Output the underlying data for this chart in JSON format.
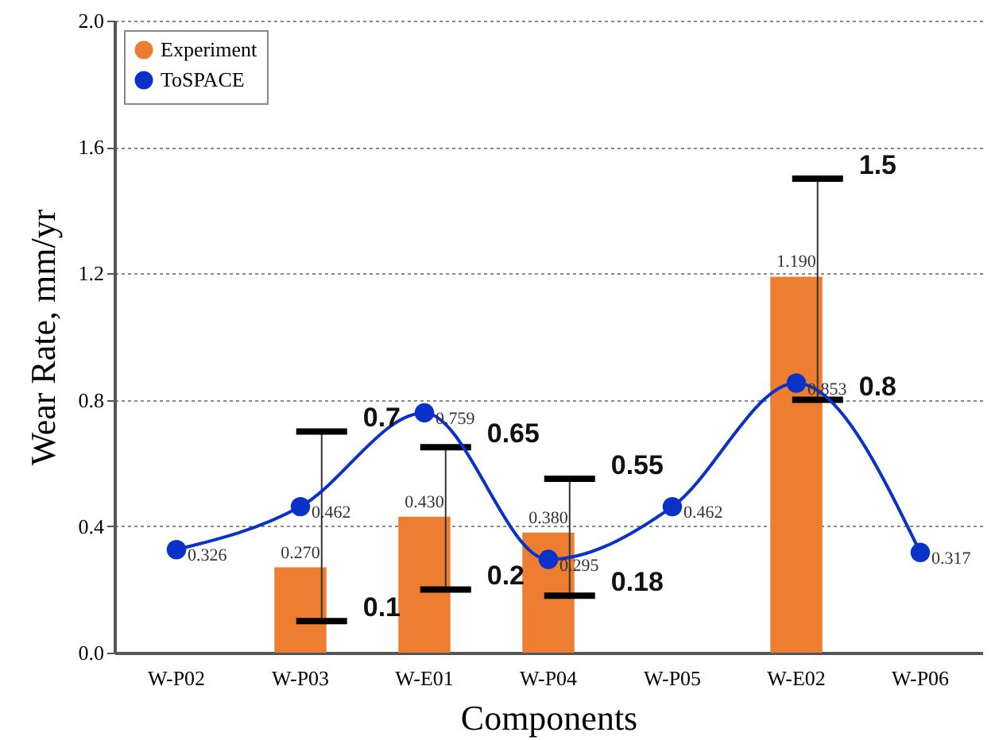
{
  "chart_data": {
    "type": "bar",
    "xlabel": "Components",
    "ylabel": "Wear Rate, mm/yr",
    "categories": [
      "W-P02",
      "W-P03",
      "W-E01",
      "W-P04",
      "W-P05",
      "W-E02",
      "W-P06"
    ],
    "series": [
      {
        "name": "Experiment",
        "color": "#ed7d31",
        "values": [
          null,
          0.27,
          0.43,
          0.38,
          null,
          1.19,
          null
        ],
        "value_labels": [
          null,
          "0.270",
          "0.430",
          "0.380",
          null,
          "1.190",
          null
        ],
        "errors": [
          null,
          [
            0.1,
            0.7
          ],
          [
            0.2,
            0.65
          ],
          [
            0.18,
            0.55
          ],
          null,
          [
            0.8,
            1.5
          ],
          null
        ]
      },
      {
        "name": "ToSPACE",
        "type": "line",
        "color": "#0a32c8",
        "marker": "circle",
        "values": [
          0.326,
          0.462,
          0.759,
          0.295,
          0.462,
          0.853,
          0.317
        ],
        "value_labels": [
          "0.326",
          "0.462",
          "0.759",
          "0.295",
          "0.462",
          "0.853",
          "0.317"
        ]
      }
    ],
    "ylim": [
      0,
      2.0
    ],
    "yticks": [
      {
        "value": 0,
        "label": "0.0"
      },
      {
        "value": 0.4,
        "label": "0.4"
      },
      {
        "value": 0.8,
        "label": "0.8"
      },
      {
        "value": 1.2,
        "label": "1.2"
      },
      {
        "value": 1.6,
        "label": "1.6"
      },
      {
        "value": 2.0,
        "label": "2.0"
      }
    ],
    "grid": "y",
    "legend": "top left",
    "annotations": [
      {
        "text": "0.7",
        "x": "W-P03",
        "y": 0.7
      },
      {
        "text": "0.1",
        "x": "W-P03",
        "y": 0.1
      },
      {
        "text": "0.65",
        "x": "W-E01",
        "y": 0.65
      },
      {
        "text": "0.2",
        "x": "W-E01",
        "y": 0.2
      },
      {
        "text": "0.55",
        "x": "W-P04",
        "y": 0.55
      },
      {
        "text": "0.18",
        "x": "W-P04",
        "y": 0.18
      },
      {
        "text": "1.5",
        "x": "W-E02",
        "y": 1.5
      },
      {
        "text": "0.8",
        "x": "W-E02",
        "y": 0.8
      }
    ]
  }
}
